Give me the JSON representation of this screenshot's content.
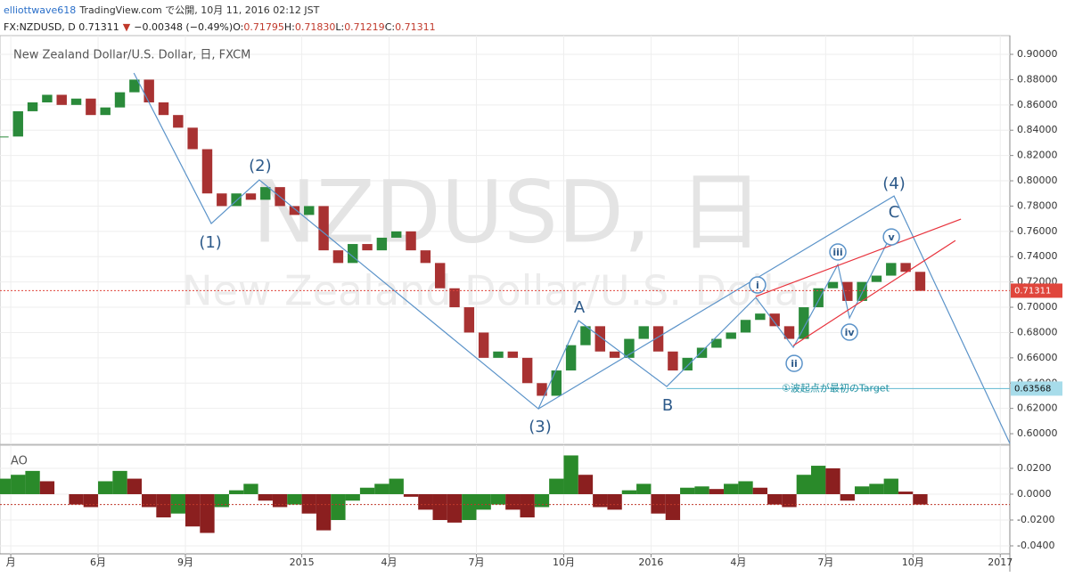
{
  "header": {
    "author": "elliottwave618",
    "published": "TradingView.com で公開, 10月 11, 2016 02:12 JST",
    "quote": [
      {
        "text": "FX:NZDUSD, D 0.71311",
        "color": "#222222"
      },
      {
        "text": "▼",
        "color": "#c0392b"
      },
      {
        "text": "−0.00348 (−0.49%)",
        "color": "#222222"
      },
      {
        "text": "O:",
        "color": "#222222"
      },
      {
        "text": "0.71795",
        "color": "#c0392b"
      },
      {
        "text": "H:",
        "color": "#222222"
      },
      {
        "text": "0.71830",
        "color": "#c0392b"
      },
      {
        "text": "L:",
        "color": "#222222"
      },
      {
        "text": "0.71219",
        "color": "#c0392b"
      },
      {
        "text": "C:",
        "color": "#222222"
      },
      {
        "text": "0.71311",
        "color": "#c0392b"
      }
    ]
  },
  "chart_data": [
    {
      "type": "candlestick",
      "title": "New Zealand Dollar/U.S. Dollar, 日, FXCM",
      "watermark": "NZDUSD, 日",
      "watermark_sub": "New Zealand Dollar/U.S. Dollar",
      "x": [
        1.75,
        2.25,
        2.75,
        3.25,
        3.75,
        4.25,
        4.75,
        5.25,
        5.75,
        6.25,
        6.75,
        7.25,
        7.75,
        8.25,
        8.75,
        9.25,
        9.75,
        10.25,
        10.75,
        11.25,
        11.75,
        12.25,
        12.75,
        13.25,
        13.75,
        14.25,
        14.75,
        15.25,
        15.75,
        16.25,
        16.75,
        17.25,
        17.75,
        18.25,
        18.75,
        19.25,
        19.75,
        20.25,
        20.75,
        21.25,
        21.75,
        22.25,
        22.75,
        23.25,
        23.75,
        24.25,
        24.75,
        25.25,
        25.75,
        26.25,
        26.75,
        27.25,
        27.75,
        28.25,
        28.75,
        29.25,
        29.75,
        30.25,
        30.75,
        31.25,
        31.75,
        32.25,
        32.75,
        33.25
      ],
      "series": [
        {
          "name": "NZDUSD",
          "values": [
            0.835,
            0.855,
            0.862,
            0.868,
            0.86,
            0.865,
            0.852,
            0.858,
            0.87,
            0.88,
            0.862,
            0.852,
            0.842,
            0.825,
            0.79,
            0.78,
            0.79,
            0.785,
            0.795,
            0.78,
            0.773,
            0.78,
            0.745,
            0.735,
            0.75,
            0.745,
            0.755,
            0.76,
            0.745,
            0.735,
            0.715,
            0.7,
            0.68,
            0.66,
            0.665,
            0.66,
            0.64,
            0.63,
            0.65,
            0.67,
            0.685,
            0.665,
            0.66,
            0.675,
            0.685,
            0.665,
            0.65,
            0.66,
            0.668,
            0.675,
            0.68,
            0.69,
            0.695,
            0.685,
            0.675,
            0.7,
            0.715,
            0.72,
            0.705,
            0.72,
            0.725,
            0.735,
            0.728,
            0.713
          ]
        }
      ],
      "up_color": "#2a8a3a",
      "down_color": "#a83232",
      "xlim": [
        1.63,
        36.33
      ],
      "ylim": [
        0.5916,
        0.9148
      ],
      "yticks": [
        {
          "value": 0.6,
          "label": "0.60000"
        },
        {
          "value": 0.62,
          "label": "0.62000"
        },
        {
          "value": 0.64,
          "label": "0.64000"
        },
        {
          "value": 0.66,
          "label": "0.66000"
        },
        {
          "value": 0.68,
          "label": "0.68000"
        },
        {
          "value": 0.7,
          "label": "0.70000"
        },
        {
          "value": 0.72,
          "label": "0.72000"
        },
        {
          "value": 0.74,
          "label": "0.74000"
        },
        {
          "value": 0.76,
          "label": "0.76000"
        },
        {
          "value": 0.78,
          "label": "0.78000"
        },
        {
          "value": 0.8,
          "label": "0.80000"
        },
        {
          "value": 0.82,
          "label": "0.82000"
        },
        {
          "value": 0.84,
          "label": "0.84000"
        },
        {
          "value": 0.86,
          "label": "0.86000"
        },
        {
          "value": 0.88,
          "label": "0.88000"
        },
        {
          "value": 0.9,
          "label": "0.90000"
        }
      ],
      "grid": true,
      "last_price": {
        "value": 0.71311,
        "label": "0.71311",
        "color": "#e0463c"
      },
      "target": {
        "value": 0.63568,
        "label": "0.63568",
        "start": 24.54,
        "text": "①波起点が最初のTarget",
        "text_x": 28.49,
        "color": "#5fb8d0"
      },
      "wave_color": "#5b93c9",
      "channel_color": "#e8323c",
      "waves": [
        {
          "x": [
            6.23,
            8.89,
            10.54,
            20.13,
            21.51,
            24.54,
            27.6,
            28.89,
            30.42,
            30.82,
            32.26
          ],
          "y": [
            0.8852,
            0.7662,
            0.8007,
            0.6197,
            0.6894,
            0.6373,
            0.7077,
            0.6683,
            0.7338,
            0.6915,
            0.7577
          ]
        },
        {
          "x": [
            20.13,
            32.35,
            36.33
          ],
          "y": [
            0.6197,
            0.788,
            0.5923
          ]
        }
      ],
      "channels": [
        {
          "x": [
            27.6,
            34.65
          ],
          "y": [
            0.7085,
            0.7697
          ]
        },
        {
          "x": [
            28.89,
            34.46
          ],
          "y": [
            0.6697,
            0.7528
          ]
        }
      ],
      "labels": [
        {
          "text": "(1)",
          "x": 8.86,
          "y": 0.7514
        },
        {
          "text": "(2)",
          "x": 10.57,
          "y": 0.812
        },
        {
          "text": "(3)",
          "x": 20.19,
          "y": 0.6056
        },
        {
          "text": "A",
          "x": 21.54,
          "y": 0.7
        },
        {
          "text": "B",
          "x": 24.57,
          "y": 0.6225
        },
        {
          "text": "(4)",
          "x": 32.35,
          "y": 0.7979
        },
        {
          "text": "C",
          "x": 32.35,
          "y": 0.7754
        },
        {
          "text": "i",
          "x": 27.66,
          "y": 0.7176,
          "circled": true
        },
        {
          "text": "ii",
          "x": 28.92,
          "y": 0.6556,
          "circled": true
        },
        {
          "text": "iii",
          "x": 30.42,
          "y": 0.7437,
          "circled": true
        },
        {
          "text": "iv",
          "x": 30.82,
          "y": 0.6803,
          "circled": true
        },
        {
          "text": "v",
          "x": 32.26,
          "y": 0.7556,
          "circled": true
        }
      ]
    },
    {
      "type": "bar",
      "title": "AO",
      "values": [
        0.012,
        0.015,
        0.018,
        0.01,
        0.0,
        -0.008,
        -0.01,
        0.01,
        0.018,
        0.012,
        -0.01,
        -0.018,
        -0.015,
        -0.025,
        -0.03,
        -0.01,
        0.003,
        0.008,
        -0.005,
        -0.01,
        -0.008,
        -0.015,
        -0.028,
        -0.02,
        -0.005,
        0.005,
        0.008,
        0.012,
        -0.002,
        -0.012,
        -0.02,
        -0.022,
        -0.02,
        -0.012,
        -0.008,
        -0.012,
        -0.018,
        -0.01,
        0.012,
        0.03,
        0.015,
        -0.01,
        -0.012,
        0.003,
        0.008,
        -0.015,
        -0.02,
        0.005,
        0.006,
        0.004,
        0.008,
        0.01,
        0.005,
        -0.008,
        -0.01,
        0.015,
        0.022,
        0.02,
        -0.005,
        0.006,
        0.008,
        0.012,
        0.002,
        -0.008
      ],
      "up_color": "#2a8a2a",
      "down_color": "#8b1f1f",
      "ylim": [
        -0.0462,
        0.0379
      ],
      "yticks": [
        {
          "value": 0.02,
          "label": "0.0200"
        },
        {
          "value": 0,
          "label": "0.0000"
        },
        {
          "value": -0.02,
          "label": "-0.0200"
        },
        {
          "value": -0.04,
          "label": "-0.0400"
        }
      ],
      "xticks": [
        {
          "value": 2,
          "label": "月"
        },
        {
          "value": 5,
          "label": "6月"
        },
        {
          "value": 8,
          "label": "9月"
        },
        {
          "value": 12,
          "label": "2015"
        },
        {
          "value": 15,
          "label": "4月"
        },
        {
          "value": 18,
          "label": "7月"
        },
        {
          "value": 21,
          "label": "10月"
        },
        {
          "value": 24,
          "label": "2016"
        },
        {
          "value": 27,
          "label": "4月"
        },
        {
          "value": 30,
          "label": "7月"
        },
        {
          "value": 33,
          "label": "10月"
        },
        {
          "value": 36,
          "label": "2017"
        }
      ]
    }
  ]
}
